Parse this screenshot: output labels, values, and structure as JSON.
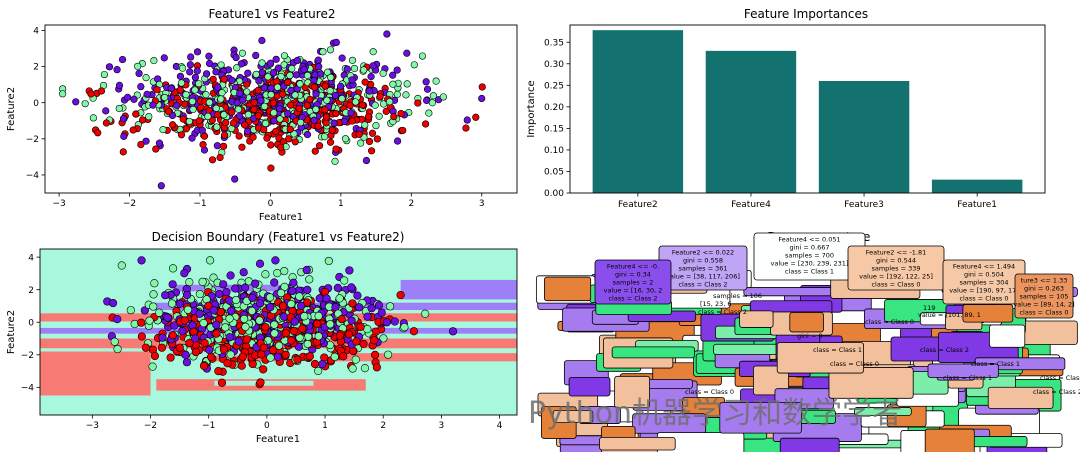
{
  "chart_data": [
    {
      "type": "scatter",
      "title": "Feature1 vs Feature2",
      "xlabel": "Feature1",
      "ylabel": "Feature2",
      "xlim": [
        -3.2,
        3.5
      ],
      "ylim": [
        -5.0,
        4.3
      ],
      "xticks": [
        -3,
        -2,
        -1,
        0,
        1,
        2,
        3
      ],
      "yticks": [
        -4,
        -2,
        0,
        2,
        4
      ],
      "class_colors": {
        "Class 0": "#ee0000",
        "Class 1": "#80f8a8",
        "Class 2": "#6a0fe0"
      },
      "note": "approx. 1000 points, 3 classes, roughly centered at (0,0) with spread ~1"
    },
    {
      "type": "bar",
      "title": "Feature Importances",
      "categories": [
        "Feature2",
        "Feature4",
        "Feature3",
        "Feature1"
      ],
      "values": [
        0.378,
        0.33,
        0.26,
        0.031
      ],
      "xlabel": "",
      "ylabel": "Importance",
      "ylim": [
        0,
        0.39
      ],
      "yticks": [
        0.0,
        0.05,
        0.1,
        0.15,
        0.2,
        0.25,
        0.3,
        0.35
      ],
      "bar_color": "#137270"
    },
    {
      "type": "scatter",
      "title": "Decision Boundary (Feature1 vs Feature2)",
      "xlabel": "Feature1",
      "ylabel": "Feature2",
      "xlim": [
        -3.9,
        4.3
      ],
      "ylim": [
        -5.7,
        4.5
      ],
      "xticks": [
        -3,
        -2,
        -1,
        0,
        1,
        2,
        3,
        4
      ],
      "yticks": [
        -4,
        -2,
        0,
        2,
        4
      ],
      "region_colors": {
        "Class 0": "#f87a74",
        "Class 1": "#a7f8dc",
        "Class 2": "#9d7ff8"
      }
    },
    {
      "type": "tree",
      "title": "Decision Tree Structure",
      "title_visible": "De",
      "title_visible_tail": "ture",
      "nodes": [
        {
          "lines": [
            "Feature4 <= 0.051",
            "gini = 0.667",
            "samples = 700",
            "value = [230, 239, 231]",
            "class = Class 1"
          ],
          "fill": "#fdfffe"
        },
        {
          "lines": [
            "Feature2 <= 0.022",
            "gini = 0.558",
            "samples = 361",
            "value = [38, 117, 206]",
            "class = Class 2"
          ],
          "fill": "#c0a4f5"
        },
        {
          "lines": [
            "Feature2 <= -1.81",
            "gini = 0.544",
            "samples = 339",
            "value = [192, 122, 25]",
            "class = Class 0"
          ],
          "fill": "#f6c8a6"
        },
        {
          "lines": [
            "Feature4 <= -0.",
            "gini = 0.34",
            "samples = 2",
            "value = [16, 30, 2",
            "class = Class 2"
          ],
          "fill": "#8a4eed"
        },
        {
          "lines": [
            "Feature4 <= 1.494",
            "gini = 0.504",
            "samples = 304",
            "value = [190, 97, 17]",
            "class = Class 0"
          ],
          "fill": "#f5c9a8"
        },
        {
          "lines": [
            "ture3 <= 1.33",
            "gini = 0.263",
            "samples = 105",
            "value = [89, 14, 2]",
            "class = Class 0"
          ],
          "fill": "#eb9660"
        }
      ],
      "partial_labels": [
        "samples = 106",
        "[15, 23, 6",
        "class = Class 2",
        "119",
        "value = [101, 89, 1",
        "class = Class 0",
        "gini = 0",
        "class = Class 1",
        "class = Class 0",
        "class = Class 2",
        "class = Class 1",
        "class = Class 1",
        "class = Class 1",
        "class = Class 0",
        "class = Class 2"
      ],
      "node_colors": {
        "Class 0": "#e58139",
        "Class 1": "#39e581",
        "Class 2": "#8139e5"
      }
    }
  ],
  "watermark": "Python机器学习和数学学者"
}
